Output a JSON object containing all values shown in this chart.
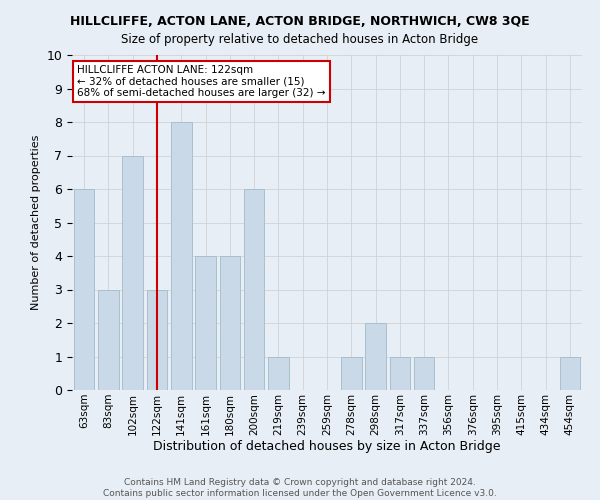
{
  "title": "HILLCLIFFE, ACTON LANE, ACTON BRIDGE, NORTHWICH, CW8 3QE",
  "subtitle": "Size of property relative to detached houses in Acton Bridge",
  "xlabel": "Distribution of detached houses by size in Acton Bridge",
  "ylabel": "Number of detached properties",
  "categories": [
    "63sqm",
    "83sqm",
    "102sqm",
    "122sqm",
    "141sqm",
    "161sqm",
    "180sqm",
    "200sqm",
    "219sqm",
    "239sqm",
    "259sqm",
    "278sqm",
    "298sqm",
    "317sqm",
    "337sqm",
    "356sqm",
    "376sqm",
    "395sqm",
    "415sqm",
    "434sqm",
    "454sqm"
  ],
  "values": [
    6,
    3,
    7,
    3,
    8,
    4,
    4,
    6,
    1,
    0,
    0,
    1,
    2,
    1,
    1,
    0,
    0,
    0,
    0,
    0,
    1
  ],
  "bar_color": "#c9d9e8",
  "bar_edge_color": "#a8bfce",
  "annotation_text": "HILLCLIFFE ACTON LANE: 122sqm\n← 32% of detached houses are smaller (15)\n68% of semi-detached houses are larger (32) →",
  "annotation_box_color": "#ffffff",
  "annotation_box_edge_color": "#cc0000",
  "vline_color": "#cc0000",
  "ylim": [
    0,
    10
  ],
  "yticks": [
    0,
    1,
    2,
    3,
    4,
    5,
    6,
    7,
    8,
    9,
    10
  ],
  "grid_color": "#cccccc",
  "background_color": "#e8eef5",
  "footer_line1": "Contains HM Land Registry data © Crown copyright and database right 2024.",
  "footer_line2": "Contains public sector information licensed under the Open Government Licence v3.0."
}
